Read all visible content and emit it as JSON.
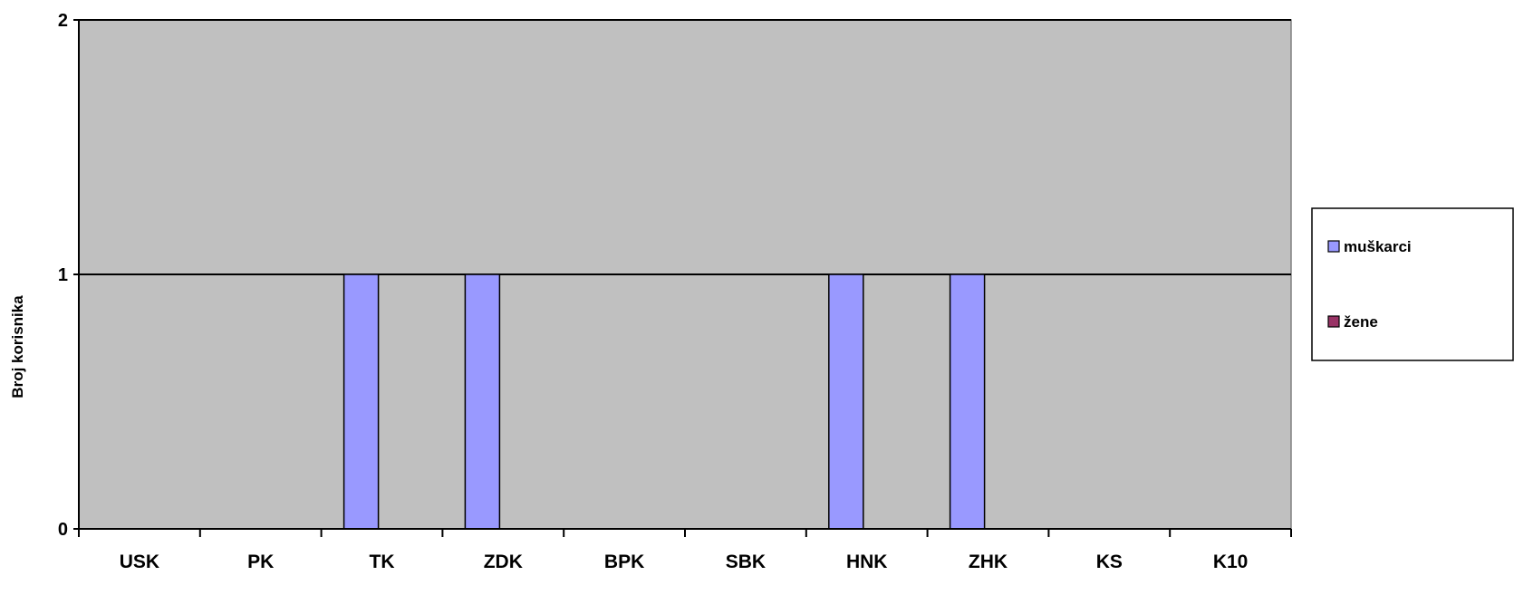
{
  "chart_data": {
    "type": "bar",
    "title": "",
    "xlabel": "",
    "ylabel": "Broj korisnika",
    "ylim": [
      0,
      2
    ],
    "yticks": [
      0,
      1,
      2
    ],
    "grid": true,
    "legend_position": "right",
    "plot_background": "#c0c0c0",
    "categories": [
      "USK",
      "PK",
      "TK",
      "ZDK",
      "BPK",
      "SBK",
      "HNK",
      "ZHK",
      "KS",
      "K10"
    ],
    "series": [
      {
        "name": "muškarci",
        "color": "#9999ff",
        "values": [
          0,
          0,
          1,
          1,
          0,
          0,
          1,
          1,
          0,
          0
        ]
      },
      {
        "name": "žene",
        "color": "#993366",
        "values": [
          0,
          0,
          0,
          0,
          0,
          0,
          0,
          0,
          0,
          0
        ]
      }
    ]
  }
}
